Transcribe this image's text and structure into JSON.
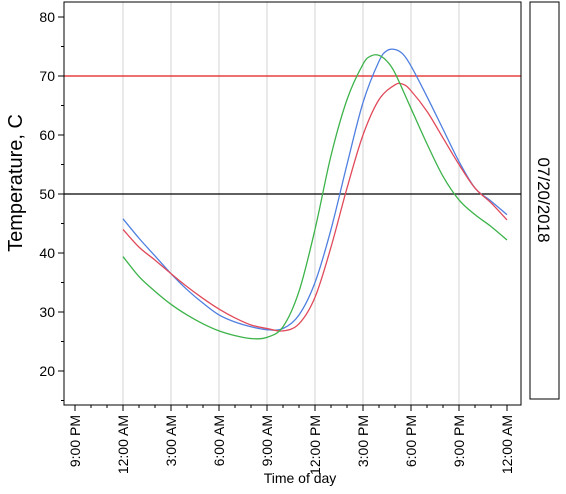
{
  "chart_data": {
    "type": "line",
    "ylabel": "Temperature, C",
    "xlabel": "Time of day",
    "panel_label": "07/20/2018",
    "ylim": [
      15,
      82
    ],
    "x_range_hours": [
      -3,
      27.3
    ],
    "x_ticks": [
      {
        "hour": -3,
        "label": "9:00 PM"
      },
      {
        "hour": 0,
        "label": "12:00 AM"
      },
      {
        "hour": 3,
        "label": "3:00 AM"
      },
      {
        "hour": 6,
        "label": "6:00 AM"
      },
      {
        "hour": 9,
        "label": "9:00 AM"
      },
      {
        "hour": 12,
        "label": "12:00 PM"
      },
      {
        "hour": 15,
        "label": "3:00 PM"
      },
      {
        "hour": 18,
        "label": "6:00 PM"
      },
      {
        "hour": 21,
        "label": "9:00 PM"
      },
      {
        "hour": 24,
        "label": "12:00 AM"
      }
    ],
    "y_ticks": [
      20,
      30,
      40,
      50,
      60,
      70,
      80
    ],
    "grid": "vertical",
    "reference_lines": [
      {
        "y": 70,
        "color": "#e31a1c"
      },
      {
        "y": 50,
        "color": "#000000"
      }
    ],
    "series": [
      {
        "color": "#4f7fe0",
        "x": [
          0,
          1,
          2,
          3,
          4,
          5,
          6,
          7,
          8,
          9,
          10,
          11,
          12,
          13,
          14,
          15,
          16,
          16.5,
          17,
          17.5,
          18,
          19,
          20,
          21,
          22,
          23,
          24
        ],
        "y": [
          45.8,
          42.5,
          39.5,
          36.5,
          33.8,
          31.5,
          29.5,
          28.3,
          27.5,
          27.0,
          27.2,
          29.5,
          35.0,
          44.0,
          55.0,
          65.5,
          72.5,
          74.3,
          74.5,
          73.7,
          71.7,
          66.5,
          61.0,
          55.5,
          51.0,
          48.8,
          46.5
        ]
      },
      {
        "color": "#e04a5a",
        "x": [
          0,
          1,
          2,
          3,
          4,
          5,
          6,
          7,
          8,
          9,
          10,
          11,
          12,
          13,
          14,
          15,
          16,
          17,
          17.5,
          18,
          19,
          20,
          21,
          22,
          23,
          24
        ],
        "y": [
          44.0,
          41.0,
          38.8,
          36.5,
          34.3,
          32.3,
          30.5,
          29.0,
          27.8,
          27.2,
          26.8,
          28.0,
          32.5,
          41.0,
          51.0,
          60.0,
          66.0,
          68.5,
          68.6,
          67.5,
          64.0,
          59.5,
          55.0,
          51.0,
          48.5,
          45.6
        ]
      },
      {
        "color": "#3db34a",
        "x": [
          0,
          1,
          2,
          3,
          4,
          5,
          6,
          7,
          8,
          9,
          10,
          11,
          12,
          13,
          14,
          15,
          15.5,
          16,
          16.5,
          17,
          18,
          19,
          20,
          21,
          22,
          23,
          24
        ],
        "y": [
          39.4,
          36.0,
          33.5,
          31.3,
          29.5,
          28.0,
          26.8,
          26.0,
          25.5,
          25.7,
          27.5,
          33.5,
          44.0,
          56.5,
          66.0,
          72.0,
          73.4,
          73.5,
          72.5,
          70.5,
          64.5,
          58.5,
          53.0,
          49.0,
          46.5,
          44.5,
          42.2
        ]
      }
    ]
  }
}
